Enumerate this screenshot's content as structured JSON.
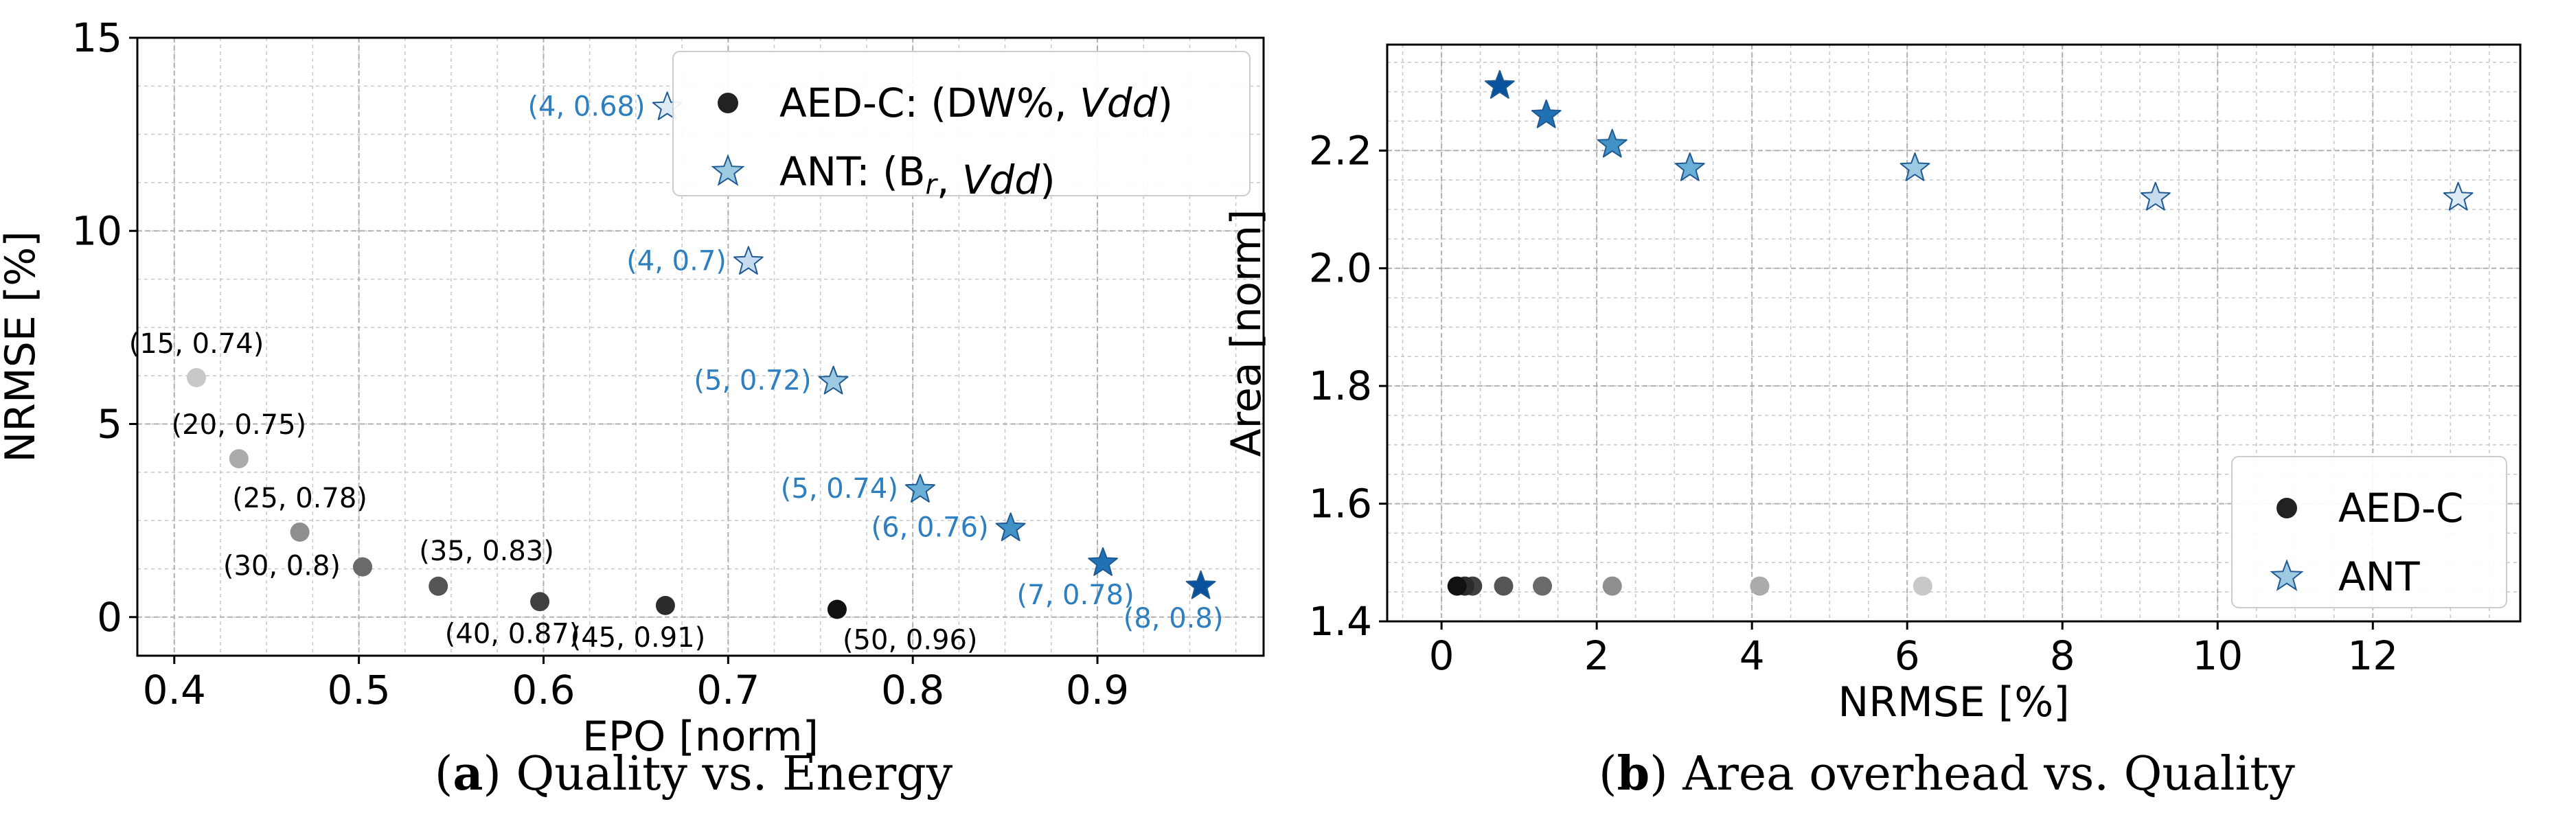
{
  "chart_data": [
    {
      "type": "scatter",
      "caption": {
        "prefix": "(",
        "letter": "a",
        "suffix": ") Quality vs. Energy"
      },
      "xlabel": "EPO [norm]",
      "ylabel": "NRMSE [%]",
      "xlim": [
        0.38,
        0.99
      ],
      "ylim": [
        -1,
        15
      ],
      "xticks": [
        0.4,
        0.5,
        0.6,
        0.7,
        0.8,
        0.9
      ],
      "xtick_labels": [
        "0.4",
        "0.5",
        "0.6",
        "0.7",
        "0.8",
        "0.9"
      ],
      "yticks": [
        0,
        5,
        10,
        15
      ],
      "ytick_labels": [
        "0",
        "5",
        "10",
        "15"
      ],
      "legend": {
        "location": "top-right",
        "entries": [
          {
            "label": "AED-C: (DW%, Vdd)",
            "marker": "circle",
            "color": "#222222"
          },
          {
            "label": "ANT: (Br, Vdd)",
            "marker": "star",
            "color": "#9ecae1"
          }
        ]
      },
      "series": [
        {
          "name": "AED-C",
          "marker": "circle",
          "points": [
            {
              "x": 0.412,
              "y": 6.2,
              "label": "(15, 0.74)",
              "color": "#c8c8c8",
              "label_pos": "above"
            },
            {
              "x": 0.435,
              "y": 4.1,
              "label": "(20, 0.75)",
              "color": "#ababab",
              "label_pos": "above"
            },
            {
              "x": 0.468,
              "y": 2.2,
              "label": "(25, 0.78)",
              "color": "#8e8e8e",
              "label_pos": "above"
            },
            {
              "x": 0.502,
              "y": 1.3,
              "label": "(30, 0.8)",
              "color": "#6a6a6a",
              "label_pos": "left"
            },
            {
              "x": 0.543,
              "y": 0.8,
              "label": "(35, 0.83)",
              "color": "#555555",
              "label_pos": "above-right"
            },
            {
              "x": 0.598,
              "y": 0.4,
              "label": "(40, 0.87)",
              "color": "#404040",
              "label_pos": "below-left"
            },
            {
              "x": 0.666,
              "y": 0.3,
              "label": "(45, 0.91)",
              "color": "#2c2c2c",
              "label_pos": "below-left"
            },
            {
              "x": 0.759,
              "y": 0.2,
              "label": "(50, 0.96)",
              "color": "#111111",
              "label_pos": "below-right"
            }
          ]
        },
        {
          "name": "ANT",
          "marker": "star",
          "points": [
            {
              "x": 0.667,
              "y": 13.2,
              "label": "(4, 0.68)",
              "color": "#deebf7",
              "label_pos": "left"
            },
            {
              "x": 0.711,
              "y": 9.2,
              "label": "(4, 0.7)",
              "color": "#c6dbef",
              "label_pos": "left"
            },
            {
              "x": 0.757,
              "y": 6.1,
              "label": "(5, 0.72)",
              "color": "#9ecae1",
              "label_pos": "left"
            },
            {
              "x": 0.804,
              "y": 3.3,
              "label": "(5, 0.74)",
              "color": "#6baed6",
              "label_pos": "left"
            },
            {
              "x": 0.853,
              "y": 2.3,
              "label": "(6, 0.76)",
              "color": "#4292c6",
              "label_pos": "left"
            },
            {
              "x": 0.903,
              "y": 1.4,
              "label": "(7, 0.78)",
              "color": "#2171b5",
              "label_pos": "below-left"
            },
            {
              "x": 0.956,
              "y": 0.8,
              "label": "(8, 0.8)",
              "color": "#08519c",
              "label_pos": "below"
            }
          ]
        }
      ]
    },
    {
      "type": "scatter",
      "caption": {
        "prefix": "(",
        "letter": "b",
        "suffix": ") Area overhead vs. Quality"
      },
      "xlabel": "NRMSE [%]",
      "ylabel": "Area [norm]",
      "xlim": [
        -0.7,
        13.9
      ],
      "ylim": [
        1.4,
        2.38
      ],
      "xticks": [
        0,
        2,
        4,
        6,
        8,
        10,
        12
      ],
      "xtick_labels": [
        "0",
        "2",
        "4",
        "6",
        "8",
        "10",
        "12"
      ],
      "yticks": [
        1.4,
        1.6,
        1.8,
        2.0,
        2.2
      ],
      "ytick_labels": [
        "1.4",
        "1.6",
        "1.8",
        "2.0",
        "2.2"
      ],
      "legend": {
        "location": "bottom-right",
        "entries": [
          {
            "label": "AED-C",
            "marker": "circle",
            "color": "#222222"
          },
          {
            "label": "ANT",
            "marker": "star",
            "color": "#9ecae1"
          }
        ]
      },
      "series": [
        {
          "name": "AED-C",
          "marker": "circle",
          "points": [
            {
              "x": 6.2,
              "y": 1.46,
              "color": "#c8c8c8"
            },
            {
              "x": 4.1,
              "y": 1.46,
              "color": "#ababab"
            },
            {
              "x": 2.2,
              "y": 1.46,
              "color": "#8e8e8e"
            },
            {
              "x": 1.3,
              "y": 1.46,
              "color": "#6a6a6a"
            },
            {
              "x": 0.8,
              "y": 1.46,
              "color": "#555555"
            },
            {
              "x": 0.4,
              "y": 1.46,
              "color": "#404040"
            },
            {
              "x": 0.3,
              "y": 1.46,
              "color": "#2c2c2c"
            },
            {
              "x": 0.2,
              "y": 1.46,
              "color": "#111111"
            }
          ]
        },
        {
          "name": "ANT",
          "marker": "star",
          "points": [
            {
              "x": 13.1,
              "y": 2.12,
              "color": "#deebf7"
            },
            {
              "x": 9.2,
              "y": 2.12,
              "color": "#c6dbef"
            },
            {
              "x": 6.1,
              "y": 2.17,
              "color": "#9ecae1"
            },
            {
              "x": 3.2,
              "y": 2.17,
              "color": "#6baed6"
            },
            {
              "x": 2.2,
              "y": 2.21,
              "color": "#4292c6"
            },
            {
              "x": 1.35,
              "y": 2.26,
              "color": "#2171b5"
            },
            {
              "x": 0.75,
              "y": 2.31,
              "color": "#08519c"
            }
          ]
        }
      ]
    }
  ],
  "colors": {
    "ant_label": "#2e7fbf",
    "aed_label": "#000000"
  }
}
